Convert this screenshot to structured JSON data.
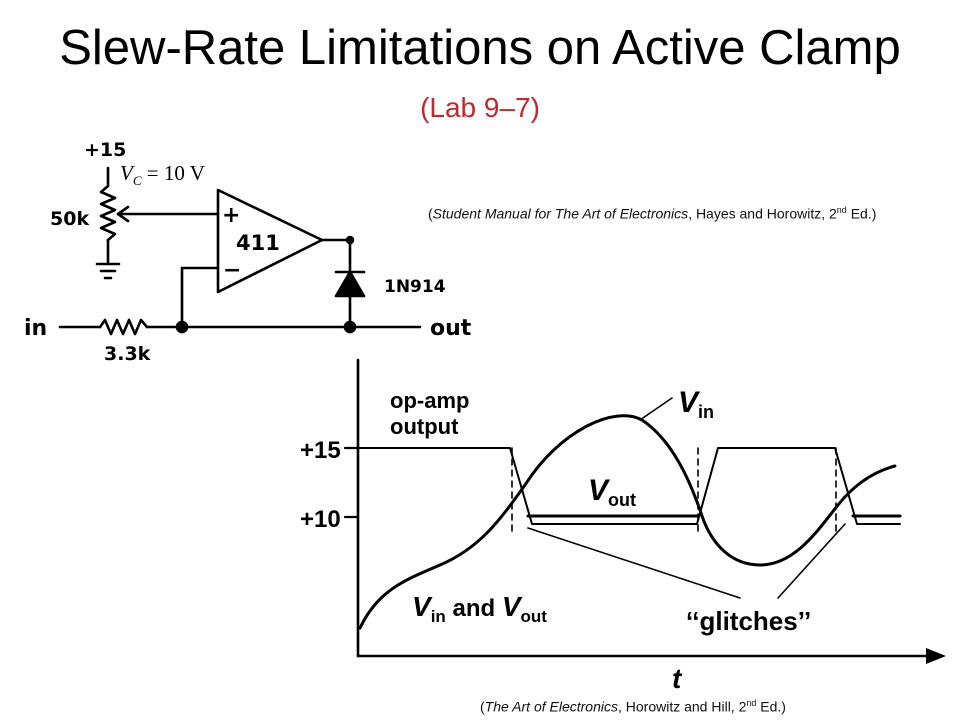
{
  "title": "Slew-Rate Limitations on Active Clamp",
  "subtitle": "(Lab 9–7)",
  "references": {
    "top": {
      "open": "(",
      "book": "Student Manual for The Art of Electronics",
      "rest": ", Hayes and Horowitz, 2",
      "sup": "nd",
      "end": " Ed.)"
    },
    "bottom": {
      "open": "(",
      "book": "The Art of Electronics",
      "rest": ", Horowitz and Hill, 2",
      "sup": "nd",
      "end": " Ed.)"
    }
  },
  "schematic": {
    "supply": "+15",
    "vc_symbol": "V",
    "vc_subscript": "C",
    "vc_value": " = 10 V",
    "pot": "50k",
    "opamp": "411",
    "opamp_plus": "+",
    "opamp_minus": "−",
    "diode": "1N914",
    "input": "in",
    "output": "out",
    "resistor": "3.3k"
  },
  "waveform": {
    "y_tick_15": "+15",
    "y_tick_10": "+10",
    "x_axis": "t",
    "label_opamp_1": "op-amp",
    "label_opamp_2": "output",
    "label_vin": "V",
    "label_vin_sub": "in",
    "label_vout": "V",
    "label_vout_sub": "out",
    "label_both_v1": "V",
    "label_both_sub1": "in",
    "label_both_and": " and ",
    "label_both_v2": "V",
    "label_both_sub2": "out",
    "label_glitches": "‘‘glitches’’",
    "colors": {
      "ink": "#000000",
      "accent": "#c0282d"
    }
  }
}
